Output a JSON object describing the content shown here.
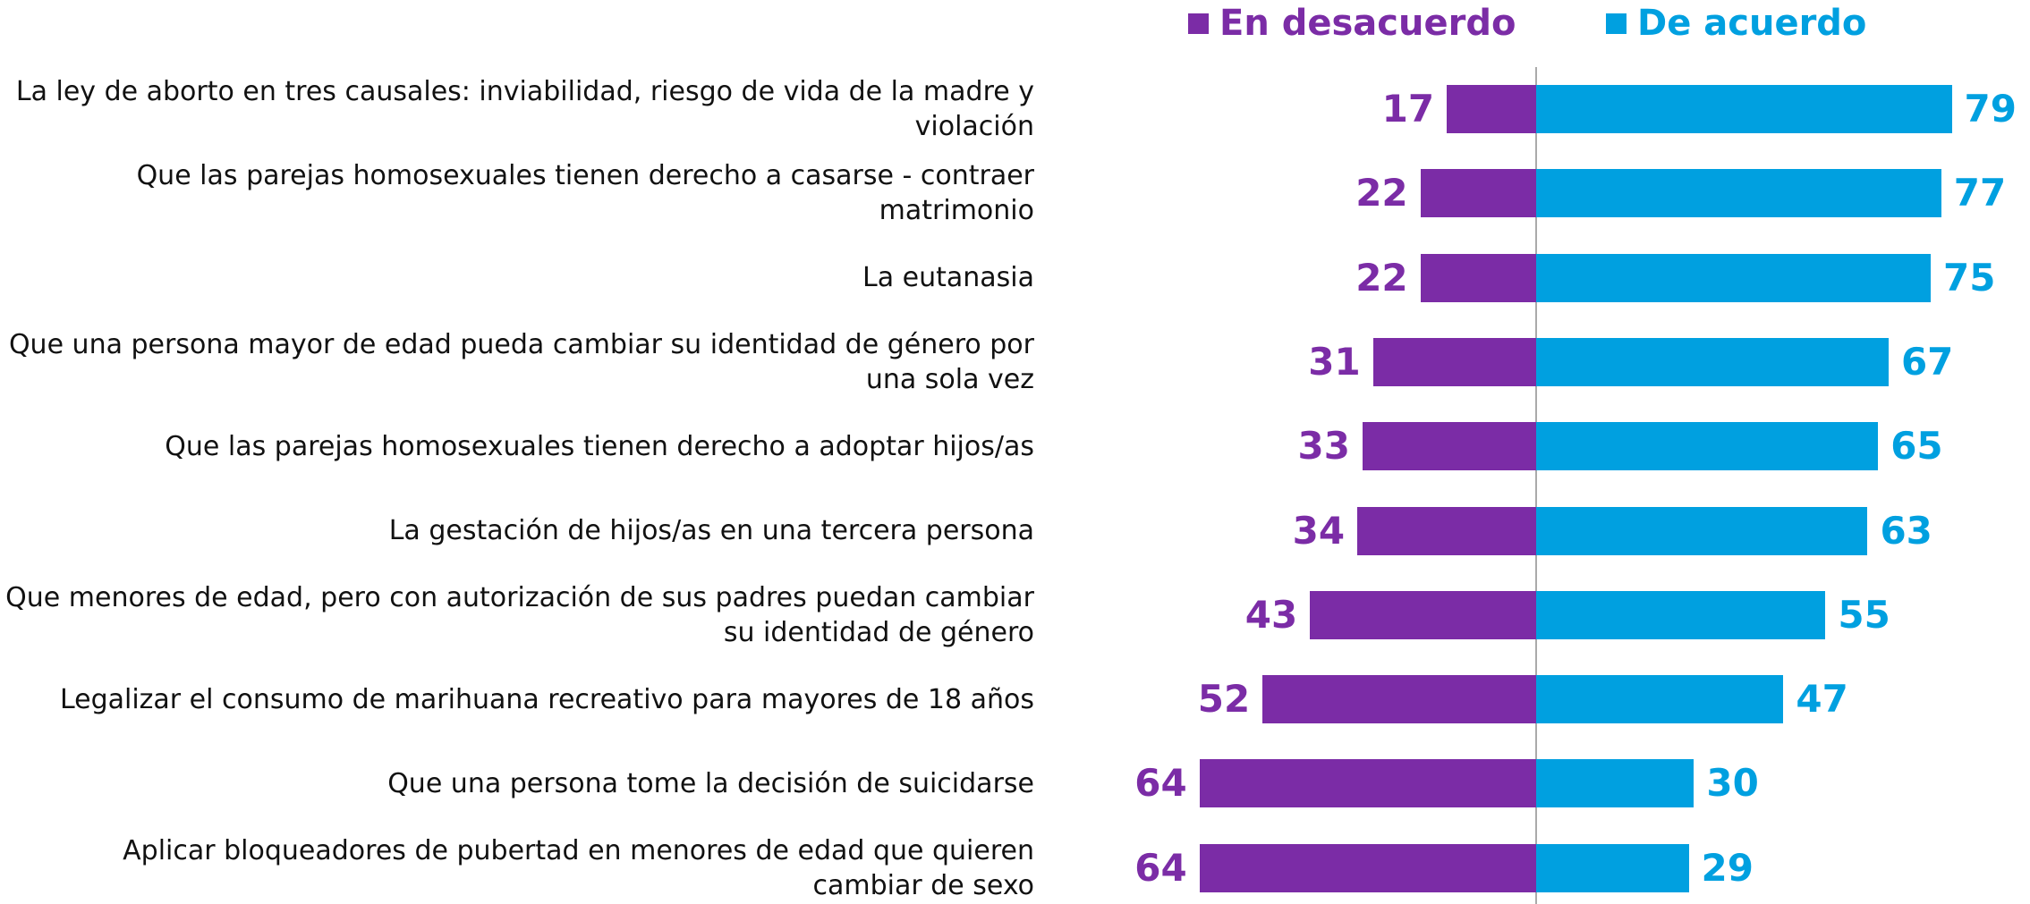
{
  "chart_data": {
    "type": "diverging_bar",
    "categories": [
      "La ley de aborto en tres causales: inviabilidad, riesgo de vida de la madre y violación",
      "Que las parejas homosexuales tienen derecho a casarse - contraer matrimonio",
      "La eutanasia",
      "Que una persona mayor de edad pueda cambiar su identidad de género por una sola vez",
      "Que las parejas homosexuales tienen derecho a adoptar hijos/as",
      "La gestación de hijos/as en una tercera persona",
      "Que menores de edad, pero con autorización de sus padres puedan cambiar su identidad de género",
      "Legalizar el consumo de marihuana recreativo para mayores de 18 años",
      "Que una persona tome la decisión de suicidarse",
      "Aplicar bloqueadores de pubertad en menores de edad que quieren cambiar de sexo"
    ],
    "series": [
      {
        "name": "En desacuerdo",
        "color": "#7b2ca6",
        "values": [
          17,
          22,
          22,
          31,
          33,
          34,
          43,
          52,
          64,
          64
        ]
      },
      {
        "name": "De acuerdo",
        "color": "#00a0e0",
        "values": [
          79,
          77,
          75,
          67,
          65,
          63,
          55,
          47,
          30,
          29
        ]
      }
    ]
  }
}
